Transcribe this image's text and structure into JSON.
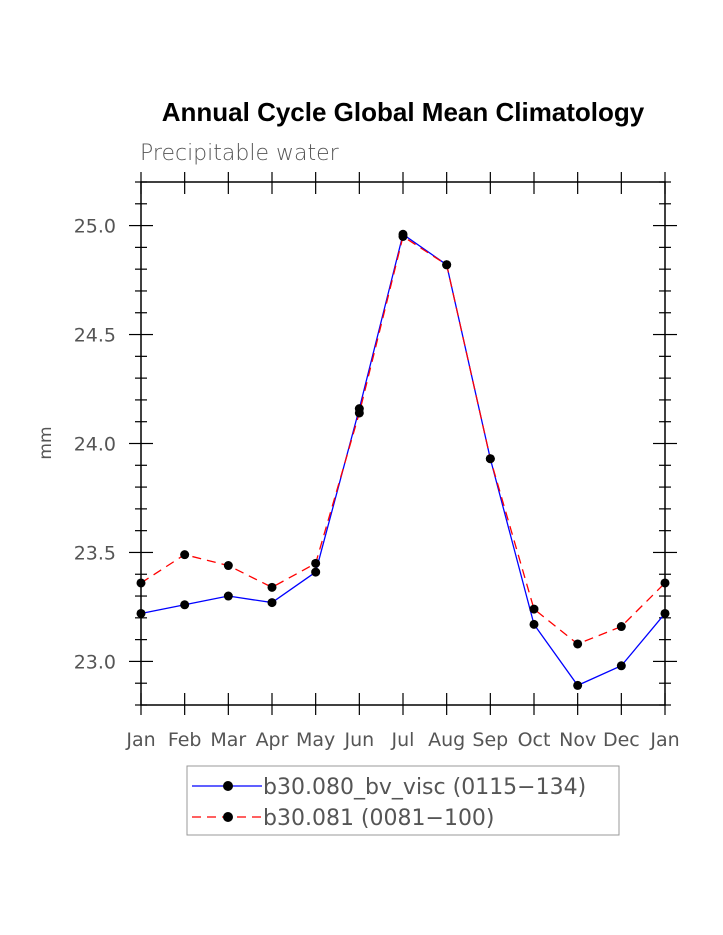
{
  "chart_data": {
    "type": "line",
    "title": "Annual Cycle Global Mean Climatology",
    "subtitle": "Precipitable water",
    "ylabel": "mm",
    "xlabel": "",
    "categories": [
      "Jan",
      "Feb",
      "Mar",
      "Apr",
      "May",
      "Jun",
      "Jul",
      "Aug",
      "Sep",
      "Oct",
      "Nov",
      "Dec",
      "Jan"
    ],
    "ylim": [
      22.8,
      25.2
    ],
    "yticks": [
      "23.0",
      "23.5",
      "24.0",
      "24.5",
      "25.0"
    ],
    "grid": false,
    "legend_position": "bottom",
    "series": [
      {
        "name": "b30.080_bv_visc (0115−134)",
        "color": "#0000ff",
        "style": "solid",
        "marker": "filled-circle",
        "values": [
          23.22,
          23.26,
          23.3,
          23.27,
          23.41,
          24.16,
          24.96,
          24.82,
          23.93,
          23.17,
          22.89,
          22.98,
          23.22
        ]
      },
      {
        "name": "b30.081 (0081−100)",
        "color": "#ff0000",
        "style": "dashed",
        "marker": "filled-circle",
        "values": [
          23.36,
          23.49,
          23.44,
          23.34,
          23.45,
          24.14,
          24.95,
          24.82,
          23.93,
          23.24,
          23.08,
          23.16,
          23.36
        ]
      }
    ]
  }
}
